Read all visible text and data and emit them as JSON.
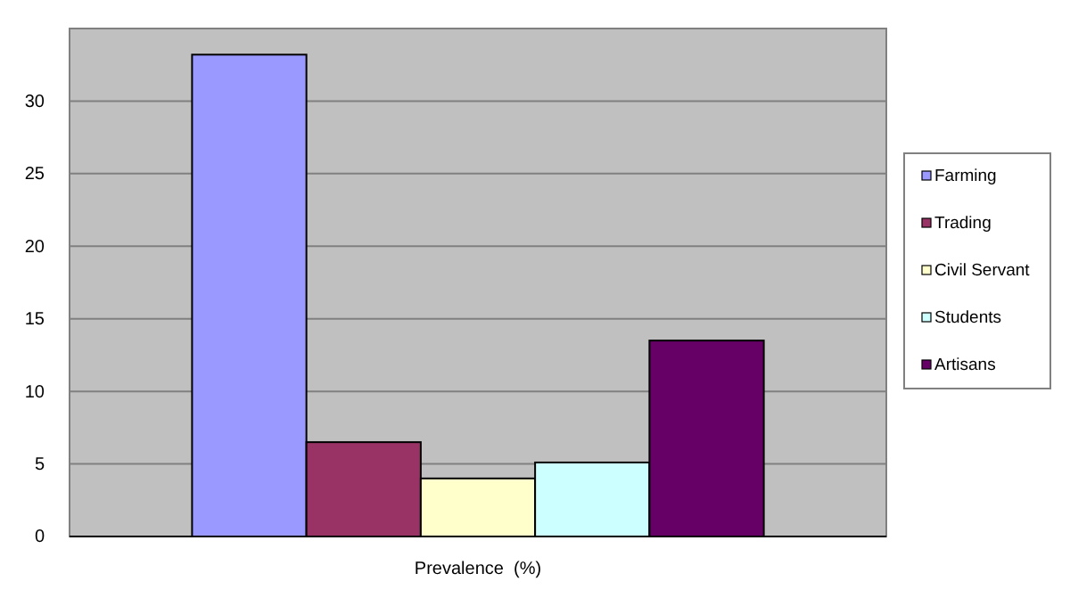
{
  "chart_data": {
    "type": "bar",
    "categories": [
      "Prevalence  (%)"
    ],
    "series": [
      {
        "name": "Farming",
        "color": "#9999ff",
        "values": [
          33.2
        ]
      },
      {
        "name": "Trading",
        "color": "#993366",
        "values": [
          6.5
        ]
      },
      {
        "name": "Civil Servant",
        "color": "#ffffcc",
        "values": [
          4.0
        ]
      },
      {
        "name": "Students",
        "color": "#ccffff",
        "values": [
          5.1
        ]
      },
      {
        "name": "Artisans",
        "color": "#660066",
        "values": [
          13.5
        ]
      }
    ],
    "ylim": [
      0,
      35
    ],
    "yticks": [
      0,
      5,
      10,
      15,
      20,
      25,
      30
    ],
    "grid": "y",
    "legend": "right"
  }
}
